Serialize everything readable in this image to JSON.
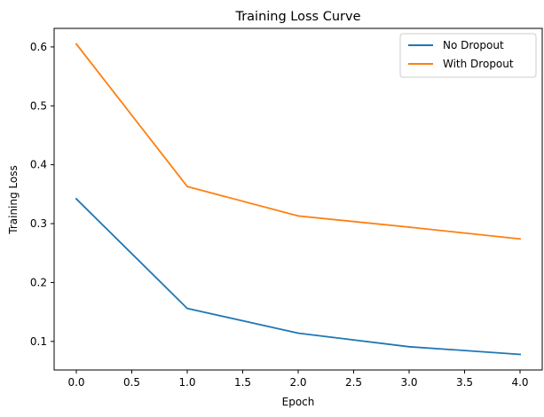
{
  "chart_data": {
    "type": "line",
    "title": "Training Loss Curve",
    "xlabel": "Epoch",
    "ylabel": "Training Loss",
    "x": [
      0,
      1,
      2,
      3,
      4
    ],
    "series": [
      {
        "name": "No Dropout",
        "color": "#1f77b4",
        "values": [
          0.342,
          0.156,
          0.114,
          0.091,
          0.078
        ]
      },
      {
        "name": "With Dropout",
        "color": "#ff7f0e",
        "values": [
          0.605,
          0.363,
          0.313,
          0.294,
          0.274
        ]
      }
    ],
    "xlim": [
      -0.2,
      4.2
    ],
    "ylim": [
      0.0515,
      0.6315
    ],
    "xticks": [
      0.0,
      0.5,
      1.0,
      1.5,
      2.0,
      2.5,
      3.0,
      3.5,
      4.0
    ],
    "xtick_labels": [
      "0.0",
      "0.5",
      "1.0",
      "1.5",
      "2.0",
      "2.5",
      "3.0",
      "3.5",
      "4.0"
    ],
    "yticks": [
      0.1,
      0.2,
      0.3,
      0.4,
      0.5,
      0.6
    ],
    "ytick_labels": [
      "0.1",
      "0.2",
      "0.3",
      "0.4",
      "0.5",
      "0.6"
    ],
    "grid": false,
    "legend_position": "top-right"
  }
}
